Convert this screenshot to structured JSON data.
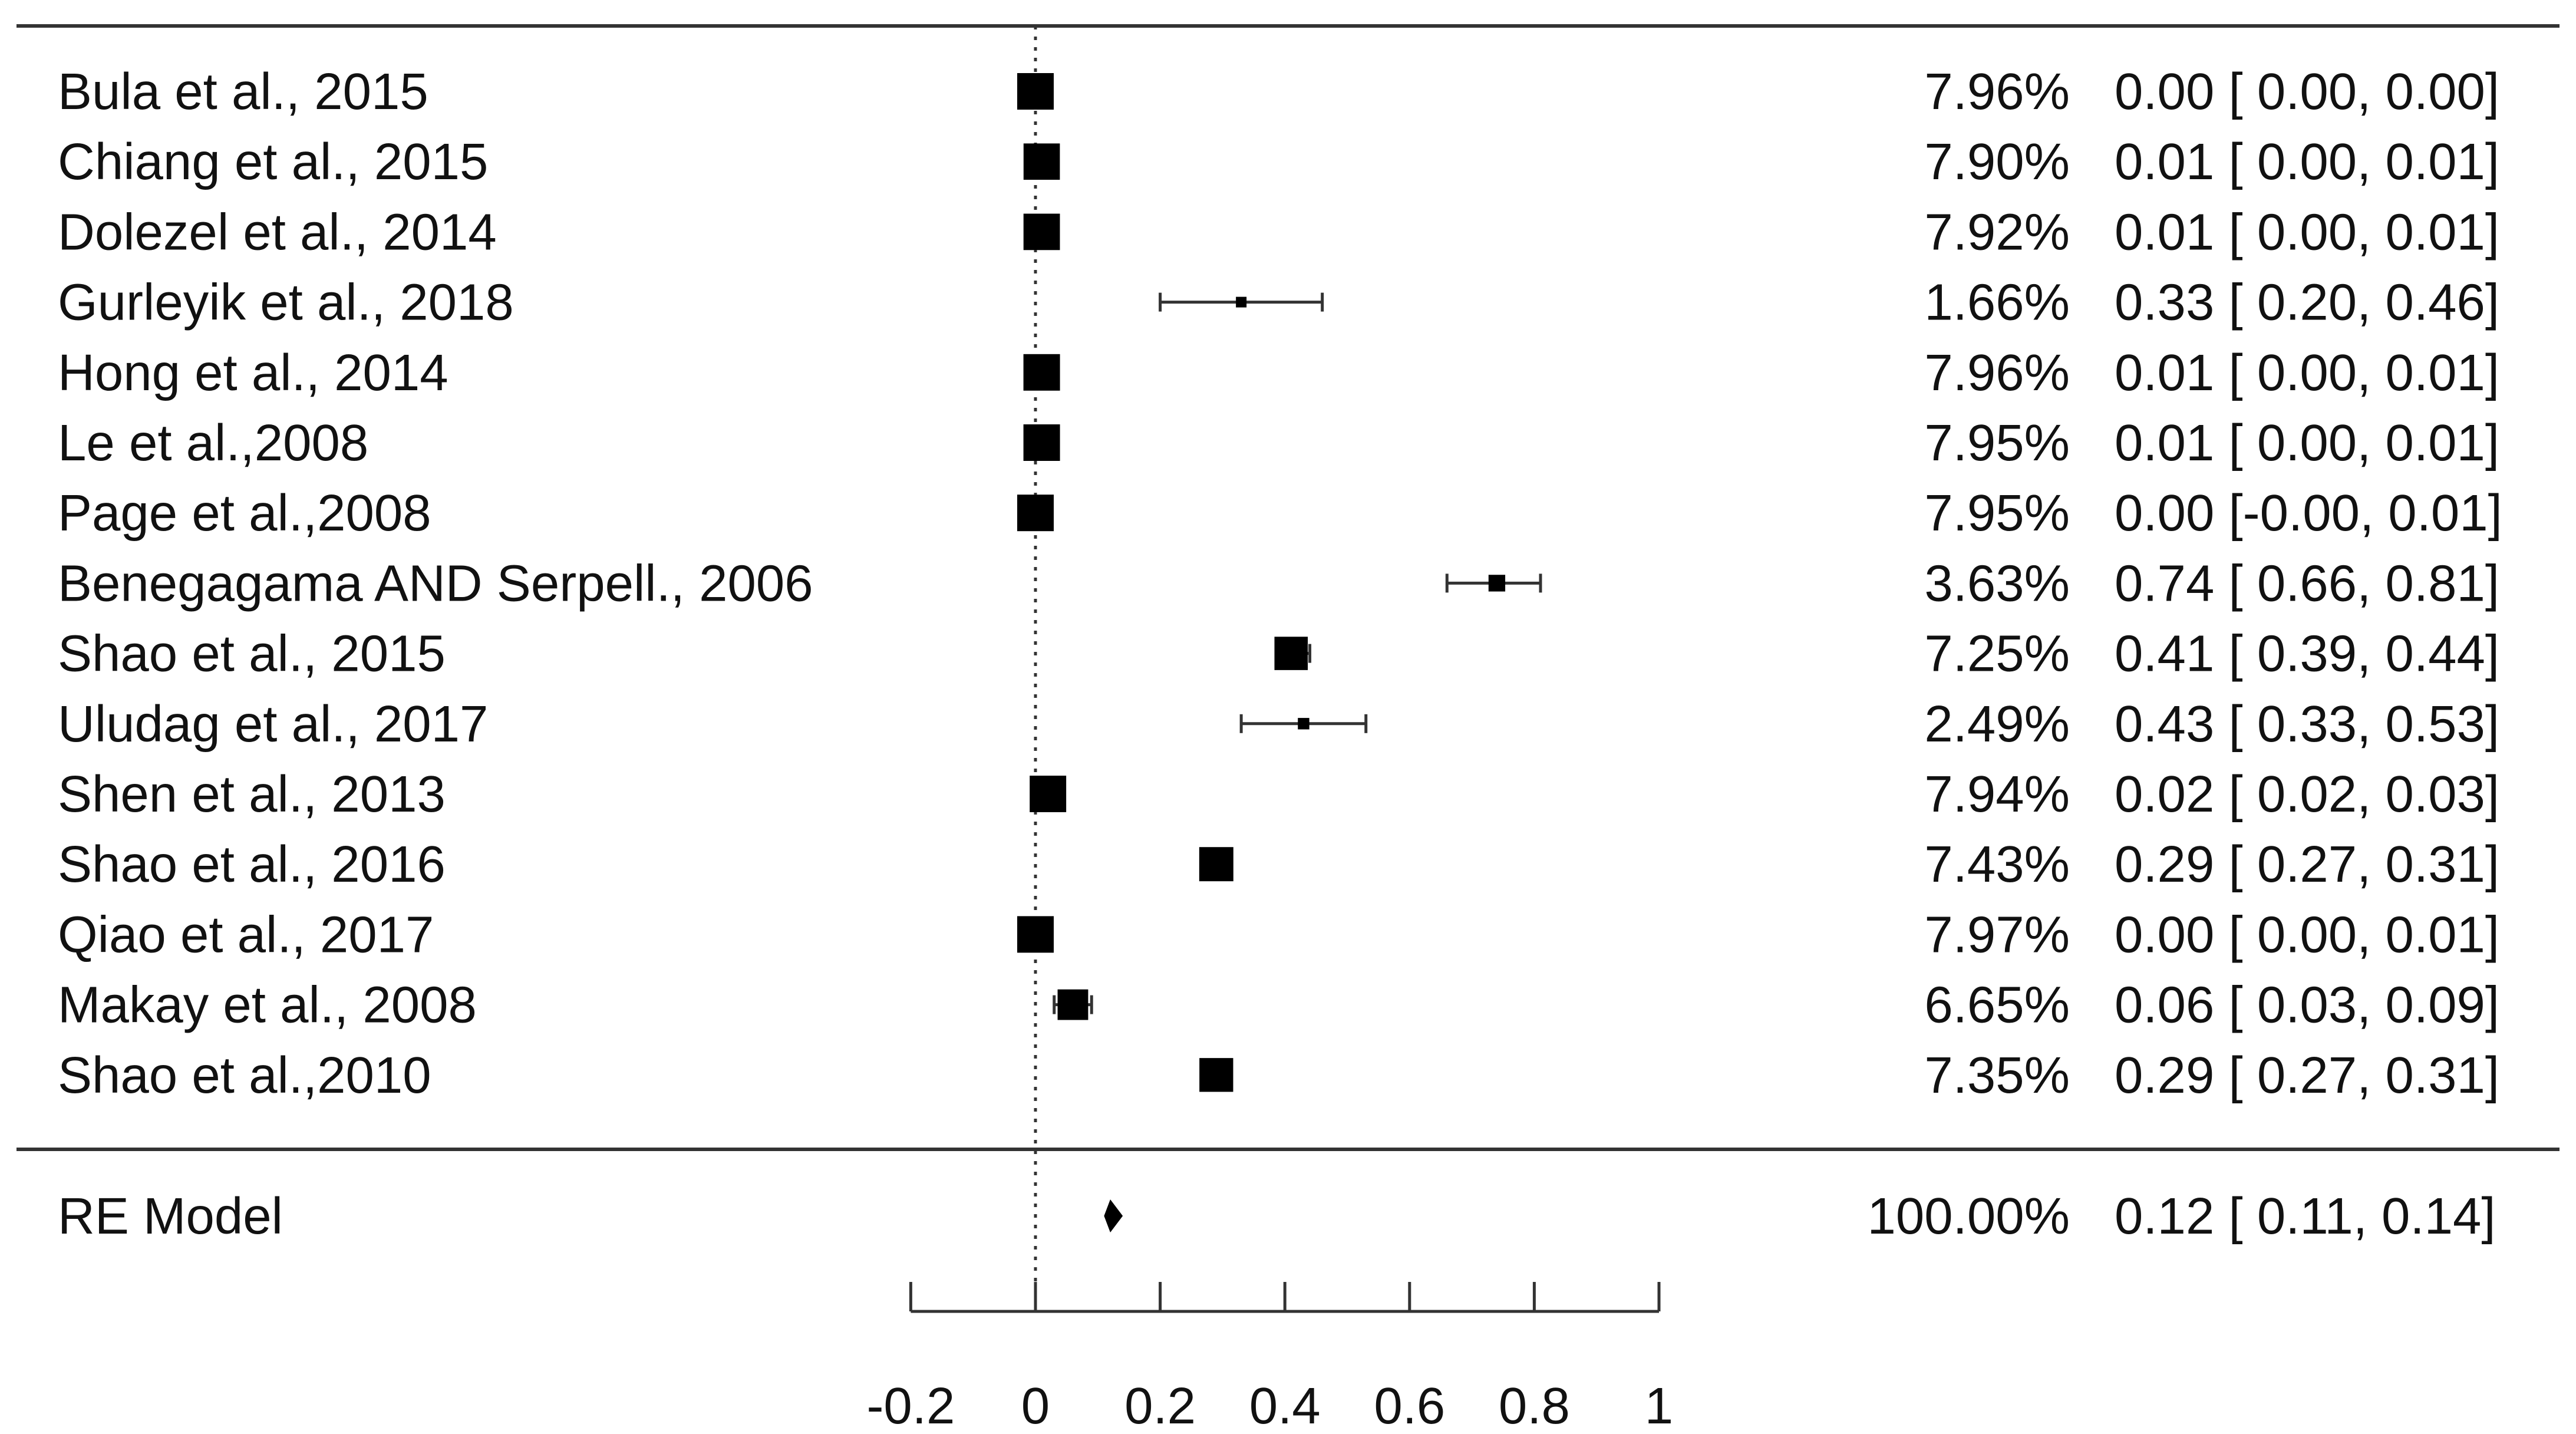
{
  "chart_data": {
    "type": "forest",
    "title": "",
    "xlabel": "",
    "xlim": [
      -0.2,
      1
    ],
    "x_ticks": [
      "-0.2",
      "0",
      "0.2",
      "0.4",
      "0.6",
      "0.8",
      "1"
    ],
    "reference_line": 0,
    "studies": [
      {
        "label": "Bula et al., 2015",
        "weight": "7.96%",
        "estimate": 0.0,
        "ci_low": 0.0,
        "ci_high": 0.0,
        "ci_text": "0.00 [ 0.00, 0.00]"
      },
      {
        "label": "Chiang et al., 2015",
        "weight": "7.90%",
        "estimate": 0.01,
        "ci_low": 0.0,
        "ci_high": 0.01,
        "ci_text": "0.01 [ 0.00, 0.01]"
      },
      {
        "label": "Dolezel et al., 2014",
        "weight": "7.92%",
        "estimate": 0.01,
        "ci_low": 0.0,
        "ci_high": 0.01,
        "ci_text": "0.01 [ 0.00, 0.01]"
      },
      {
        "label": "Gurleyik et al., 2018",
        "weight": "1.66%",
        "estimate": 0.33,
        "ci_low": 0.2,
        "ci_high": 0.46,
        "ci_text": "0.33 [ 0.20, 0.46]"
      },
      {
        "label": "Hong et al., 2014",
        "weight": "7.96%",
        "estimate": 0.01,
        "ci_low": 0.0,
        "ci_high": 0.01,
        "ci_text": "0.01 [ 0.00, 0.01]"
      },
      {
        "label": "Le et al.,2008",
        "weight": "7.95%",
        "estimate": 0.01,
        "ci_low": 0.0,
        "ci_high": 0.01,
        "ci_text": "0.01 [ 0.00, 0.01]"
      },
      {
        "label": "Page et al.,2008",
        "weight": "7.95%",
        "estimate": 0.0,
        "ci_low": -0.0,
        "ci_high": 0.01,
        "ci_text": "0.00 [-0.00, 0.01]"
      },
      {
        "label": "Benegagama AND Serpell., 2006",
        "weight": "3.63%",
        "estimate": 0.74,
        "ci_low": 0.66,
        "ci_high": 0.81,
        "ci_text": "0.74 [ 0.66, 0.81]"
      },
      {
        "label": "Shao et al., 2015",
        "weight": "7.25%",
        "estimate": 0.41,
        "ci_low": 0.39,
        "ci_high": 0.44,
        "ci_text": "0.41 [ 0.39, 0.44]"
      },
      {
        "label": "Uludag et al., 2017",
        "weight": "2.49%",
        "estimate": 0.43,
        "ci_low": 0.33,
        "ci_high": 0.53,
        "ci_text": "0.43 [ 0.33, 0.53]"
      },
      {
        "label": "Shen et al., 2013",
        "weight": "7.94%",
        "estimate": 0.02,
        "ci_low": 0.02,
        "ci_high": 0.03,
        "ci_text": "0.02 [ 0.02, 0.03]"
      },
      {
        "label": "Shao et al., 2016",
        "weight": "7.43%",
        "estimate": 0.29,
        "ci_low": 0.27,
        "ci_high": 0.31,
        "ci_text": "0.29 [ 0.27, 0.31]"
      },
      {
        "label": "Qiao et al., 2017",
        "weight": "7.97%",
        "estimate": 0.0,
        "ci_low": 0.0,
        "ci_high": 0.01,
        "ci_text": "0.00 [ 0.00, 0.01]"
      },
      {
        "label": "Makay et al., 2008",
        "weight": "6.65%",
        "estimate": 0.06,
        "ci_low": 0.03,
        "ci_high": 0.09,
        "ci_text": "0.06 [ 0.03, 0.09]"
      },
      {
        "label": "Shao et al.,2010",
        "weight": "7.35%",
        "estimate": 0.29,
        "ci_low": 0.27,
        "ci_high": 0.31,
        "ci_text": "0.29 [ 0.27, 0.31]"
      }
    ],
    "model": {
      "label": "RE Model",
      "weight": "100.00%",
      "estimate": 0.12,
      "ci_low": 0.11,
      "ci_high": 0.14,
      "ci_text": "0.12 [ 0.11, 0.14]"
    }
  }
}
